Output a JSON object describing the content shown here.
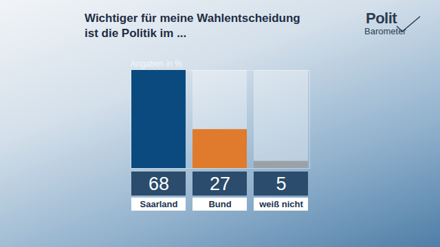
{
  "chart_data": {
    "type": "bar",
    "title": "Wichtiger für meine Wahlentscheidung ist die Politik im ...",
    "annotation": "Angaben in %",
    "logo": [
      "Polit",
      "Barometer"
    ],
    "categories": [
      "Saarland",
      "Bund",
      "weiß nicht"
    ],
    "values": [
      68,
      27,
      5
    ],
    "colors": [
      "#0b4a7f",
      "#e07a2c",
      "#9aa1a8"
    ],
    "ylim": [
      0,
      68
    ],
    "tick_labels": false,
    "data_labels": true
  }
}
